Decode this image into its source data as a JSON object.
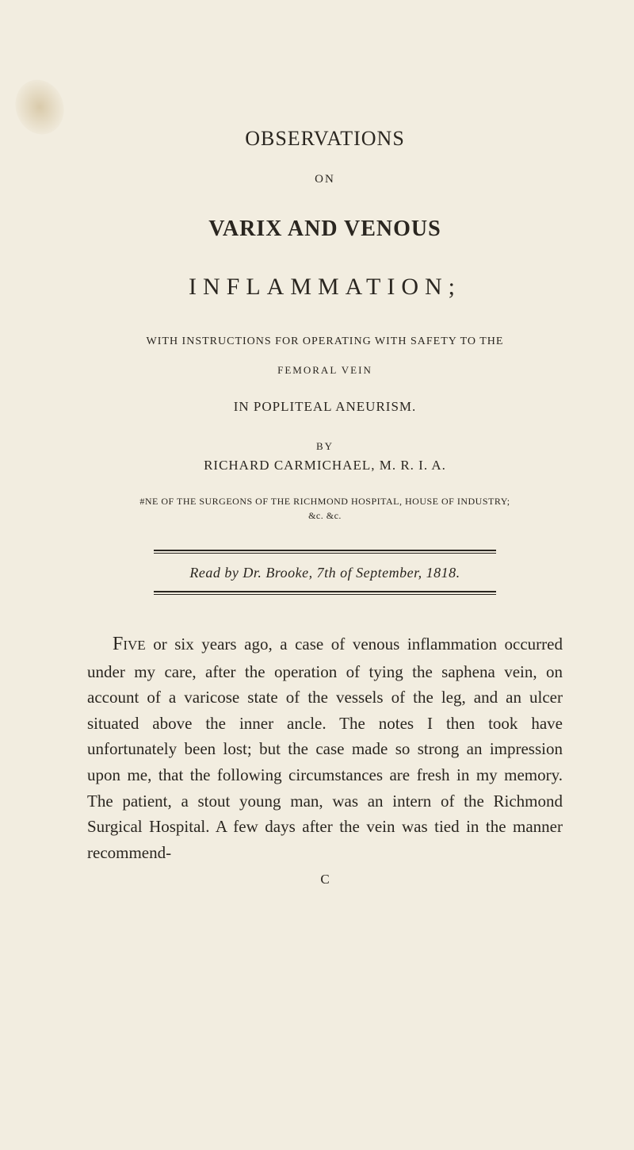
{
  "header": {
    "title1": "OBSERVATIONS",
    "on": "ON",
    "title2": "VARIX AND VENOUS",
    "title3": "INFLAMMATION;",
    "subtitle1": "WITH INSTRUCTIONS FOR OPERATING WITH SAFETY TO THE",
    "subtitle2": "FEMORAL VEIN",
    "subtitle3": "IN POPLITEAL ANEURISM.",
    "by": "BY",
    "author": "RICHARD CARMICHAEL, M. R. I. A.",
    "credentials_line1": "#NE OF THE SURGEONS OF THE RICHMOND HOSPITAL, HOUSE OF INDUSTRY;",
    "credentials_line2": "&c. &c.",
    "readby": "Read by Dr. Brooke, 7th of September, 1818."
  },
  "body": {
    "first_word": "Five",
    "paragraph": " or six years ago, a case of venous inflammation occurred under my care, after the operation of tying the saphena vein, on account of a varicose state of the vessels of the leg, and an ulcer situated above the inner ancle. The notes I then took have unfortunately been lost; but the case made so strong an impression upon me, that the following circumstances are fresh in my memory. The patient, a stout young man, was an intern of the Richmond Surgical Hospital. A few days after the vein was tied in the manner recommend-",
    "signature_mark": "C"
  },
  "colors": {
    "paper": "#f2ede0",
    "ink": "#2a2620",
    "stain": "rgba(180,150,90,0.35)"
  }
}
